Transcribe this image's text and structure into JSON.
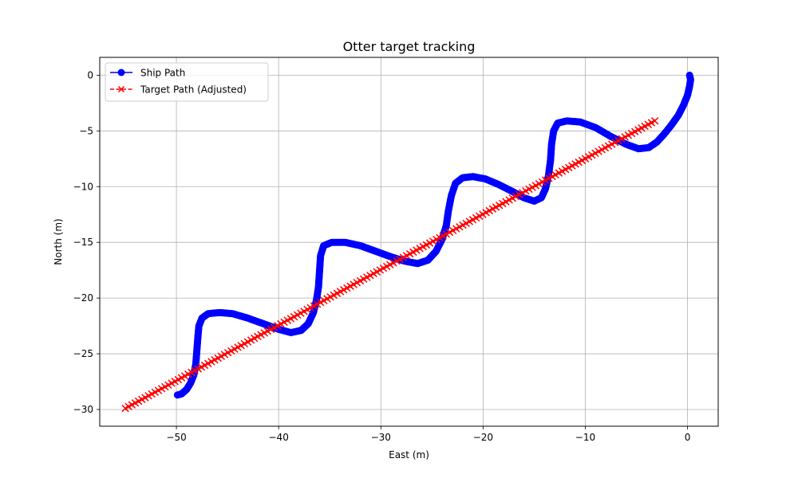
{
  "chart_data": {
    "type": "line",
    "title": "Otter target tracking",
    "xlabel": "East (m)",
    "ylabel": "North (m)",
    "xlim": [
      -57.5,
      3.0
    ],
    "ylim": [
      -31.5,
      1.6
    ],
    "xticks": [
      -50,
      -40,
      -30,
      -20,
      -10,
      0
    ],
    "yticks": [
      0,
      -5,
      -10,
      -15,
      -20,
      -25,
      -30
    ],
    "xtick_labels": [
      "−50",
      "−40",
      "−30",
      "−20",
      "−10",
      "0"
    ],
    "ytick_labels": [
      "0",
      "−5",
      "−10",
      "−15",
      "−20",
      "−25",
      "−30"
    ],
    "grid": true,
    "legend_position": "top-left",
    "series": [
      {
        "name": "Ship Path",
        "color": "#0000ff",
        "marker": "circle",
        "linestyle": "solid",
        "points": [
          [
            0.2,
            0.0
          ],
          [
            0.3,
            -0.4
          ],
          [
            0.2,
            -1.0
          ],
          [
            0.0,
            -1.8
          ],
          [
            -0.4,
            -2.7
          ],
          [
            -0.9,
            -3.6
          ],
          [
            -1.6,
            -4.5
          ],
          [
            -2.3,
            -5.3
          ],
          [
            -3.0,
            -6.0
          ],
          [
            -3.8,
            -6.5
          ],
          [
            -4.8,
            -6.6
          ],
          [
            -6.0,
            -6.2
          ],
          [
            -7.5,
            -5.5
          ],
          [
            -9.0,
            -4.7
          ],
          [
            -10.5,
            -4.2
          ],
          [
            -11.8,
            -4.1
          ],
          [
            -12.7,
            -4.3
          ],
          [
            -13.1,
            -5.0
          ],
          [
            -13.3,
            -6.2
          ],
          [
            -13.4,
            -7.6
          ],
          [
            -13.6,
            -9.0
          ],
          [
            -13.9,
            -10.2
          ],
          [
            -14.3,
            -11.0
          ],
          [
            -15.0,
            -11.3
          ],
          [
            -16.0,
            -11.0
          ],
          [
            -17.2,
            -10.4
          ],
          [
            -18.5,
            -9.8
          ],
          [
            -19.8,
            -9.3
          ],
          [
            -21.0,
            -9.1
          ],
          [
            -22.0,
            -9.2
          ],
          [
            -22.7,
            -9.7
          ],
          [
            -23.1,
            -10.8
          ],
          [
            -23.4,
            -12.2
          ],
          [
            -23.6,
            -13.5
          ],
          [
            -24.0,
            -14.7
          ],
          [
            -24.6,
            -15.8
          ],
          [
            -25.4,
            -16.6
          ],
          [
            -26.4,
            -16.9
          ],
          [
            -27.6,
            -16.7
          ],
          [
            -29.0,
            -16.3
          ],
          [
            -30.5,
            -15.8
          ],
          [
            -32.0,
            -15.3
          ],
          [
            -33.5,
            -15.0
          ],
          [
            -34.8,
            -15.0
          ],
          [
            -35.6,
            -15.3
          ],
          [
            -35.9,
            -16.2
          ],
          [
            -36.0,
            -17.6
          ],
          [
            -36.1,
            -19.0
          ],
          [
            -36.3,
            -20.2
          ],
          [
            -36.6,
            -21.3
          ],
          [
            -37.1,
            -22.3
          ],
          [
            -37.8,
            -22.9
          ],
          [
            -38.8,
            -23.1
          ],
          [
            -40.0,
            -22.8
          ],
          [
            -41.5,
            -22.3
          ],
          [
            -43.0,
            -21.8
          ],
          [
            -44.5,
            -21.4
          ],
          [
            -45.8,
            -21.3
          ],
          [
            -46.9,
            -21.4
          ],
          [
            -47.5,
            -21.8
          ],
          [
            -47.8,
            -22.5
          ],
          [
            -47.9,
            -23.5
          ],
          [
            -48.0,
            -24.7
          ],
          [
            -48.1,
            -25.9
          ],
          [
            -48.3,
            -26.9
          ],
          [
            -48.6,
            -27.6
          ],
          [
            -49.0,
            -28.2
          ],
          [
            -49.5,
            -28.6
          ],
          [
            -49.9,
            -28.7
          ]
        ]
      },
      {
        "name": "Target Path (Adjusted)",
        "color": "#ff0000",
        "marker": "x",
        "linestyle": "dashed",
        "points": [
          [
            -55.0,
            -29.9
          ],
          [
            -3.2,
            -4.1
          ]
        ],
        "marker_count": 160
      }
    ]
  }
}
